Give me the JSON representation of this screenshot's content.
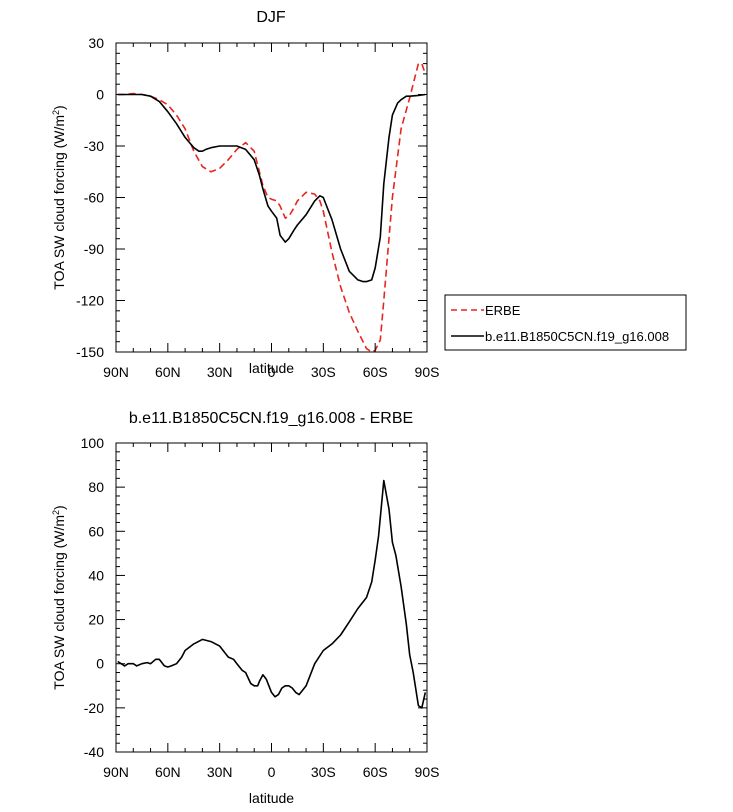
{
  "chart_data": [
    {
      "type": "line",
      "title": "DJF",
      "xlabel": "latitude",
      "ylabel": "TOA SW cloud forcing (W/m",
      "ylabel_sup": "2",
      "ylabel_close": ")",
      "xlim": [
        90,
        -90
      ],
      "ylim": [
        -150,
        30
      ],
      "x_ticks": [
        {
          "value": 90,
          "label": "90N"
        },
        {
          "value": 60,
          "label": "60N"
        },
        {
          "value": 30,
          "label": "30N"
        },
        {
          "value": 0,
          "label": "0"
        },
        {
          "value": -30,
          "label": "30S"
        },
        {
          "value": -60,
          "label": "60S"
        },
        {
          "value": -90,
          "label": "90S"
        }
      ],
      "y_ticks": [
        {
          "value": 30,
          "label": "30"
        },
        {
          "value": 0,
          "label": "0"
        },
        {
          "value": -30,
          "label": "-30"
        },
        {
          "value": -60,
          "label": "-60"
        },
        {
          "value": -90,
          "label": "-90"
        },
        {
          "value": -120,
          "label": "-120"
        },
        {
          "value": -150,
          "label": "-150"
        }
      ],
      "legend": {
        "placement": "right"
      },
      "series": [
        {
          "name": "ERBE",
          "color": "#e8251f",
          "dash": "dashed",
          "x": [
            89,
            85,
            80,
            75,
            70,
            65,
            60,
            55,
            50,
            45,
            40,
            35,
            30,
            25,
            20,
            15,
            10,
            7,
            5,
            2,
            0,
            -3,
            -5,
            -8,
            -10,
            -13,
            -15,
            -20,
            -25,
            -28,
            -30,
            -35,
            -40,
            -45,
            -50,
            -55,
            -58,
            -60,
            -63,
            -65,
            -70,
            -75,
            -80,
            -83,
            -85,
            -87,
            -89
          ],
          "y": [
            0,
            0,
            0.5,
            0,
            -1,
            -3,
            -6,
            -12,
            -20,
            -33,
            -42,
            -45,
            -43,
            -38,
            -32,
            -28,
            -33,
            -45,
            -53,
            -60,
            -61,
            -62,
            -65,
            -72,
            -71,
            -66,
            -62,
            -57,
            -58,
            -62,
            -68,
            -92,
            -112,
            -127,
            -138,
            -148,
            -150,
            -149,
            -143,
            -120,
            -60,
            -20,
            -2,
            10,
            18,
            18,
            12
          ]
        },
        {
          "name": "b.e11.B1850C5CN.f19_g16.008",
          "color": "#000000",
          "dash": "solid",
          "x": [
            89,
            85,
            80,
            75,
            70,
            65,
            60,
            55,
            50,
            45,
            42,
            40,
            38,
            35,
            30,
            25,
            20,
            15,
            10,
            7,
            5,
            2,
            0,
            -3,
            -5,
            -8,
            -10,
            -13,
            -15,
            -20,
            -25,
            -28,
            -30,
            -35,
            -40,
            -45,
            -50,
            -53,
            -55,
            -58,
            -60,
            -63,
            -65,
            -68,
            -70,
            -73,
            -75,
            -78,
            -80,
            -85,
            -89
          ],
          "y": [
            0,
            0,
            0,
            0,
            -1,
            -4,
            -10,
            -17,
            -25,
            -31,
            -33,
            -33,
            -32,
            -31,
            -30,
            -30,
            -30,
            -32,
            -38,
            -47,
            -55,
            -65,
            -68,
            -72,
            -82,
            -86,
            -84,
            -79,
            -76,
            -70,
            -62,
            -59,
            -60,
            -73,
            -90,
            -103,
            -108,
            -109,
            -109,
            -108,
            -101,
            -83,
            -52,
            -25,
            -12,
            -5,
            -3,
            -1,
            -1,
            -0.5,
            0
          ]
        }
      ]
    },
    {
      "type": "line",
      "title": "b.e11.B1850C5CN.f19_g16.008 - ERBE",
      "xlabel": "latitude",
      "ylabel": "TOA SW cloud forcing (W/m",
      "ylabel_sup": "2",
      "ylabel_close": ")",
      "xlim": [
        90,
        -90
      ],
      "ylim": [
        -40,
        100
      ],
      "x_ticks": [
        {
          "value": 90,
          "label": "90N"
        },
        {
          "value": 60,
          "label": "60N"
        },
        {
          "value": 30,
          "label": "30N"
        },
        {
          "value": 0,
          "label": "0"
        },
        {
          "value": -30,
          "label": "30S"
        },
        {
          "value": -60,
          "label": "60S"
        },
        {
          "value": -90,
          "label": "90S"
        }
      ],
      "y_ticks": [
        {
          "value": 100,
          "label": "100"
        },
        {
          "value": 80,
          "label": "80"
        },
        {
          "value": 60,
          "label": "60"
        },
        {
          "value": 40,
          "label": "40"
        },
        {
          "value": 20,
          "label": "20"
        },
        {
          "value": 0,
          "label": "0"
        },
        {
          "value": -20,
          "label": "-20"
        },
        {
          "value": -40,
          "label": "-40"
        }
      ],
      "series": [
        {
          "color": "#000000",
          "dash": "solid",
          "x": [
            89,
            87,
            85,
            83,
            80,
            78,
            75,
            72,
            70,
            67,
            65,
            62,
            60,
            58,
            55,
            52,
            50,
            45,
            40,
            35,
            30,
            25,
            22,
            20,
            17,
            15,
            12,
            10,
            8,
            7,
            5,
            3,
            2,
            0,
            -2,
            -4,
            -6,
            -8,
            -10,
            -12,
            -14,
            -16,
            -18,
            -20,
            -25,
            -30,
            -35,
            -40,
            -45,
            -50,
            -55,
            -58,
            -60,
            -62,
            -65,
            -68,
            -70,
            -72,
            -75,
            -78,
            -80,
            -82,
            -85,
            -87,
            -89
          ],
          "y": [
            1,
            0,
            -1,
            0,
            0,
            -1,
            0,
            0.5,
            0,
            2,
            2,
            -1,
            -1.5,
            -1,
            0,
            3,
            6,
            9,
            11,
            10,
            8,
            3,
            2,
            0,
            -3,
            -4,
            -9,
            -10,
            -10,
            -8,
            -5,
            -7,
            -9,
            -13,
            -15,
            -14,
            -11,
            -10,
            -10,
            -11,
            -13,
            -14,
            -12,
            -10,
            0,
            6,
            9,
            13,
            19,
            25,
            30,
            37,
            47,
            58,
            83,
            70,
            55,
            49,
            35,
            18,
            4,
            -4,
            -19,
            -20,
            -13
          ]
        }
      ]
    }
  ]
}
